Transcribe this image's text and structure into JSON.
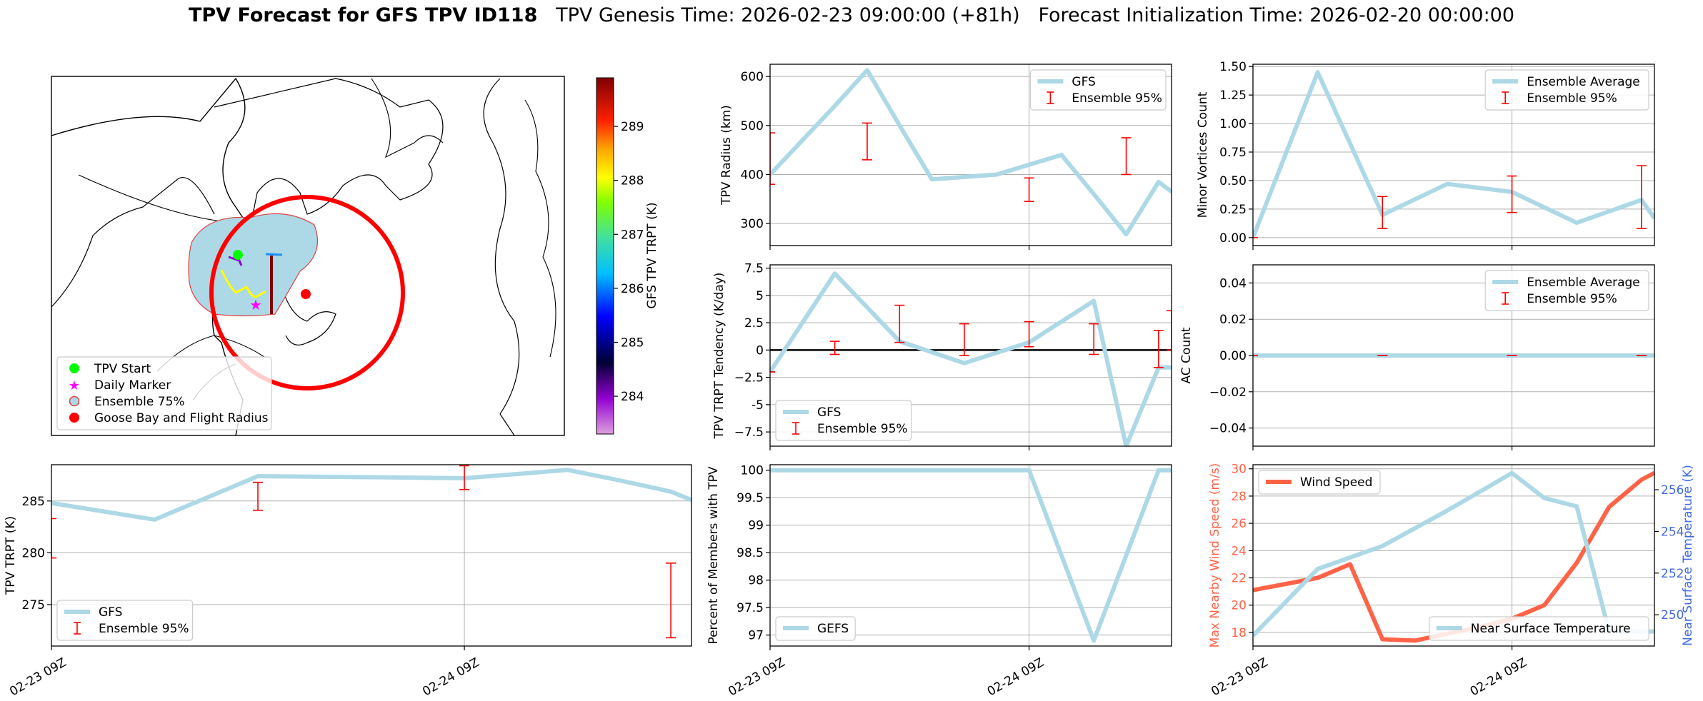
{
  "title": {
    "bold": "TPV Forecast for GFS TPV ID118",
    "genesis": "TPV Genesis Time: 2026-02-23 09:00:00 (+81h)",
    "init": "Forecast Initialization Time: 2026-02-20 00:00:00"
  },
  "colors": {
    "gfs": "#add8e6",
    "ensemble": "#ff0000",
    "wind": "#ff6347",
    "temp": "#add8e6",
    "wind_axis": "#ff6347",
    "temp_axis": "#4169e1",
    "grid": "#b0b0b0"
  },
  "map": {
    "legend": [
      "TPV Start",
      "Daily Marker",
      "Ensemble 75%",
      "Goose Bay and Flight Radius"
    ],
    "colorbar": {
      "label": "GFS TPV TRPT (K)",
      "ticks": [
        "284",
        "285",
        "286",
        "287",
        "288",
        "289"
      ],
      "range": [
        283.3,
        289.9
      ]
    }
  },
  "chart_data": [
    {
      "id": "radius",
      "type": "line",
      "ylabel": "TPV Radius (km)",
      "ylim": [
        255,
        625
      ],
      "yticks": [
        300,
        400,
        500,
        600
      ],
      "xlim": [
        0,
        1.55
      ],
      "xgrid": [
        1
      ],
      "series": [
        {
          "name": "GFS",
          "x": [
            0,
            0.25,
            0.375,
            0.5,
            0.625,
            0.75,
            0.875,
            1.0,
            1.125,
            1.25,
            1.375,
            1.5,
            1.55
          ],
          "values": [
            400,
            540,
            613,
            500,
            390,
            395,
            400,
            420,
            440,
            360,
            278,
            385,
            365
          ]
        }
      ],
      "ensemble": {
        "name": "Ensemble 95%",
        "x": [
          0,
          0.375,
          1.0,
          1.375
        ],
        "low": [
          380,
          430,
          345,
          400
        ],
        "high": [
          485,
          505,
          393,
          475
        ]
      },
      "legend": "upper-right"
    },
    {
      "id": "tendency",
      "type": "line",
      "ylabel": "TPV TRPT Tendency (K/day)",
      "ylim": [
        -8.8,
        7.8
      ],
      "yticks": [
        -7.5,
        -5.0,
        -2.5,
        0.0,
        2.5,
        5.0,
        7.5
      ],
      "xlim": [
        0,
        1.55
      ],
      "xgrid": [
        1
      ],
      "zero_line": true,
      "series": [
        {
          "name": "GFS",
          "x": [
            0,
            0.25,
            0.5,
            0.75,
            1.0,
            1.25,
            1.375,
            1.5,
            1.55
          ],
          "values": [
            -2.0,
            7.0,
            0.8,
            -1.2,
            0.7,
            4.5,
            -8.8,
            -1.6,
            -1.6
          ]
        }
      ],
      "ensemble": {
        "name": "Ensemble 95%",
        "x": [
          0,
          0.25,
          0.5,
          0.75,
          1.0,
          1.25,
          1.5,
          1.55
        ],
        "low": [
          -2.0,
          -0.4,
          0.7,
          -0.5,
          0.3,
          -0.4,
          -1.6,
          0.0
        ],
        "high": [
          -2.0,
          0.8,
          4.1,
          2.4,
          2.6,
          2.4,
          1.8,
          3.6
        ]
      },
      "legend": "lower-left"
    },
    {
      "id": "members",
      "type": "line",
      "ylabel": "Percent of Members with TPV",
      "ylim": [
        96.8,
        100.1
      ],
      "yticks": [
        97.0,
        97.5,
        98.0,
        98.5,
        99.0,
        99.5,
        100.0
      ],
      "xlim": [
        0,
        1.55
      ],
      "xgrid": [
        1
      ],
      "series": [
        {
          "name": "GEFS",
          "x": [
            0,
            0.25,
            0.5,
            0.75,
            1.0,
            1.25,
            1.5,
            1.55
          ],
          "values": [
            100,
            100,
            100,
            100,
            100,
            96.9,
            100,
            100
          ]
        }
      ],
      "legend": "lower-left"
    },
    {
      "id": "minor",
      "type": "line",
      "ylabel": "Minor Vortices Count",
      "ylim": [
        -0.07,
        1.52
      ],
      "yticks": [
        0.0,
        0.25,
        0.5,
        0.75,
        1.0,
        1.25,
        1.5
      ],
      "ytick_labels": [
        "0.00",
        "0.25",
        "0.50",
        "0.75",
        "1.00",
        "1.25",
        "1.50"
      ],
      "xlim": [
        0,
        1.55
      ],
      "xgrid": [
        1
      ],
      "series": [
        {
          "name": "Ensemble Average",
          "x": [
            0,
            0.25,
            0.5,
            0.75,
            1.0,
            1.25,
            1.5,
            1.55
          ],
          "values": [
            0.0,
            1.45,
            0.2,
            0.47,
            0.4,
            0.13,
            0.33,
            0.17
          ]
        }
      ],
      "ensemble": {
        "name": "Ensemble 95%",
        "x": [
          0,
          0.5,
          1.0,
          1.5
        ],
        "low": [
          0.0,
          0.08,
          0.22,
          0.08
        ],
        "high": [
          0.0,
          0.36,
          0.54,
          0.63
        ]
      },
      "legend": "upper-right"
    },
    {
      "id": "ac",
      "type": "line",
      "ylabel": "AC Count",
      "ylim": [
        -0.05,
        0.05
      ],
      "yticks": [
        -0.04,
        -0.02,
        0.0,
        0.02,
        0.04
      ],
      "ytick_labels": [
        "−0.04",
        "−0.02",
        "0.00",
        "0.02",
        "0.04"
      ],
      "xlim": [
        0,
        1.55
      ],
      "xgrid": [
        1
      ],
      "series": [
        {
          "name": "Ensemble Average",
          "x": [
            0,
            1.55
          ],
          "values": [
            0,
            0
          ]
        }
      ],
      "ensemble": {
        "name": "Ensemble 95%",
        "x": [
          0,
          0.5,
          1.0,
          1.5
        ],
        "low": [
          0,
          0,
          0,
          0
        ],
        "high": [
          0,
          0,
          0,
          0
        ]
      },
      "legend": "upper-right"
    },
    {
      "id": "trpt",
      "type": "line",
      "ylabel": "TPV TRPT (K)",
      "ylim": [
        271,
        288.5
      ],
      "yticks": [
        275,
        280,
        285
      ],
      "xlim": [
        0,
        1.55
      ],
      "xgrid": [
        1
      ],
      "xticks": [
        0,
        1
      ],
      "xtick_labels": [
        "02-23 09Z",
        "02-24 09Z"
      ],
      "series": [
        {
          "name": "GFS",
          "x": [
            0,
            0.25,
            0.5,
            0.75,
            1.0,
            1.125,
            1.25,
            1.375,
            1.5,
            1.55
          ],
          "values": [
            284.8,
            283.2,
            287.4,
            287.3,
            287.2,
            287.6,
            288.0,
            287.0,
            285.9,
            285.1
          ]
        }
      ],
      "ensemble": {
        "name": "Ensemble 95%",
        "x": [
          0,
          0.5,
          1.0,
          1.5
        ],
        "low": [
          279.5,
          284.1,
          286.1,
          271.8
        ],
        "high": [
          283.3,
          286.8,
          288.4,
          279.0
        ]
      },
      "legend": "lower-left"
    },
    {
      "id": "wind_temp",
      "type": "line",
      "ylabel": "Max Nearby Wind Speed (m/s)",
      "ylabel_right": "Near Surface Temperature (K)",
      "ylim": [
        17,
        30.3
      ],
      "yticks": [
        18,
        20,
        22,
        24,
        26,
        28,
        30
      ],
      "ylim_right": [
        248.5,
        257.2
      ],
      "yticks_right": [
        250,
        252,
        254,
        256
      ],
      "xlim": [
        0,
        1.55
      ],
      "xgrid": [
        1
      ],
      "series": [
        {
          "name": "Wind Speed",
          "x": [
            0,
            0.25,
            0.375,
            0.5,
            0.625,
            0.75,
            0.875,
            1.0,
            1.125,
            1.25,
            1.375,
            1.5,
            1.55
          ],
          "values": [
            21.1,
            22,
            23.0,
            17.5,
            17.4,
            17.9,
            18.4,
            19.0,
            20,
            23.1,
            27.2,
            29.2,
            29.7
          ],
          "axis": "left"
        },
        {
          "name": "Near Surface Temperature",
          "x": [
            0,
            0.25,
            0.5,
            0.75,
            1.0,
            1.125,
            1.25,
            1.375,
            1.5,
            1.55
          ],
          "values": [
            249.0,
            252.2,
            253.3,
            255.0,
            256.8,
            255.6,
            255.2,
            249.2,
            249.2,
            249.2
          ],
          "axis": "right"
        }
      ],
      "legend_left": "upper-left",
      "legend_right": "lower-right"
    }
  ],
  "xticks_shared": {
    "labels": [
      "02-23 09Z",
      "02-24 09Z"
    ]
  }
}
